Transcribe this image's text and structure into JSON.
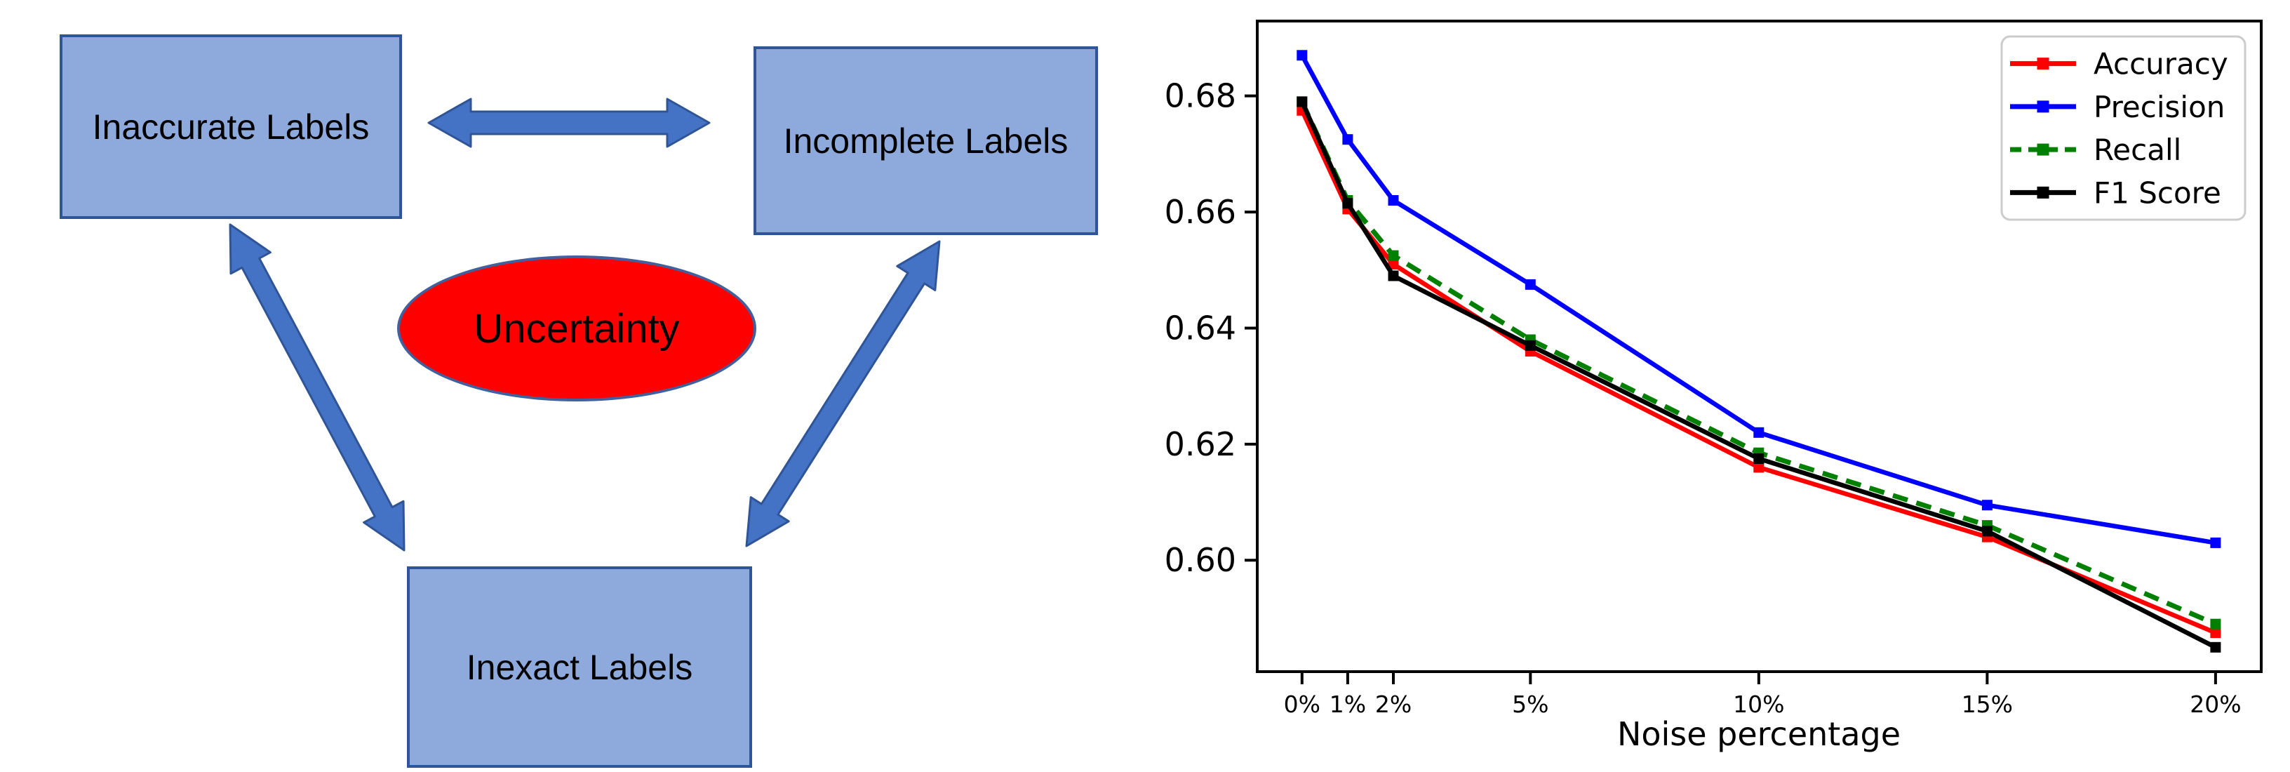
{
  "diagram": {
    "boxes": [
      {
        "label": "Inaccurate Labels"
      },
      {
        "label": "Incomplete Labels"
      },
      {
        "label": "Inexact Labels"
      }
    ],
    "ellipse_label": "Uncertainty",
    "colors": {
      "box_fill": "#8EA9DB",
      "box_border": "#2E5597",
      "arrow_fill": "#4472C4",
      "arrow_border": "#2F5597",
      "ellipse_fill": "#FF0000",
      "ellipse_border": "#41619E"
    }
  },
  "chart_data": {
    "type": "line",
    "title": "",
    "xlabel": "Noise percentage",
    "ylabel": "",
    "x": [
      0,
      1,
      2,
      5,
      10,
      15,
      20
    ],
    "x_tick_labels": [
      "0%",
      "1%",
      "2%",
      "5%",
      "10%",
      "15%",
      "20%"
    ],
    "y_ticks": [
      0.6,
      0.62,
      0.64,
      0.66,
      0.68
    ],
    "y_tick_labels": [
      "0.60",
      "0.62",
      "0.64",
      "0.66",
      "0.68"
    ],
    "xlim": [
      -0.98,
      21.0
    ],
    "ylim": [
      0.5808,
      0.6929
    ],
    "grid": false,
    "legend_position": "upper right",
    "legend_border": "#cccccc",
    "series": [
      {
        "name": "Accuracy",
        "color": "#FF0000",
        "style": "solid",
        "marker": "square",
        "values": [
          0.6775,
          0.6605,
          0.651,
          0.636,
          0.616,
          0.604,
          0.5875
        ]
      },
      {
        "name": "Precision",
        "color": "#0000FF",
        "style": "solid",
        "marker": "square",
        "values": [
          0.687,
          0.6725,
          0.662,
          0.6475,
          0.622,
          0.6095,
          0.603
        ]
      },
      {
        "name": "Recall",
        "color": "#008000",
        "style": "dashed",
        "marker": "square",
        "values": [
          0.679,
          0.662,
          0.6525,
          0.638,
          0.6185,
          0.606,
          0.589
        ]
      },
      {
        "name": "F1 Score",
        "color": "#000000",
        "style": "solid",
        "marker": "square",
        "values": [
          0.679,
          0.6615,
          0.649,
          0.637,
          0.6175,
          0.605,
          0.585
        ]
      }
    ]
  }
}
